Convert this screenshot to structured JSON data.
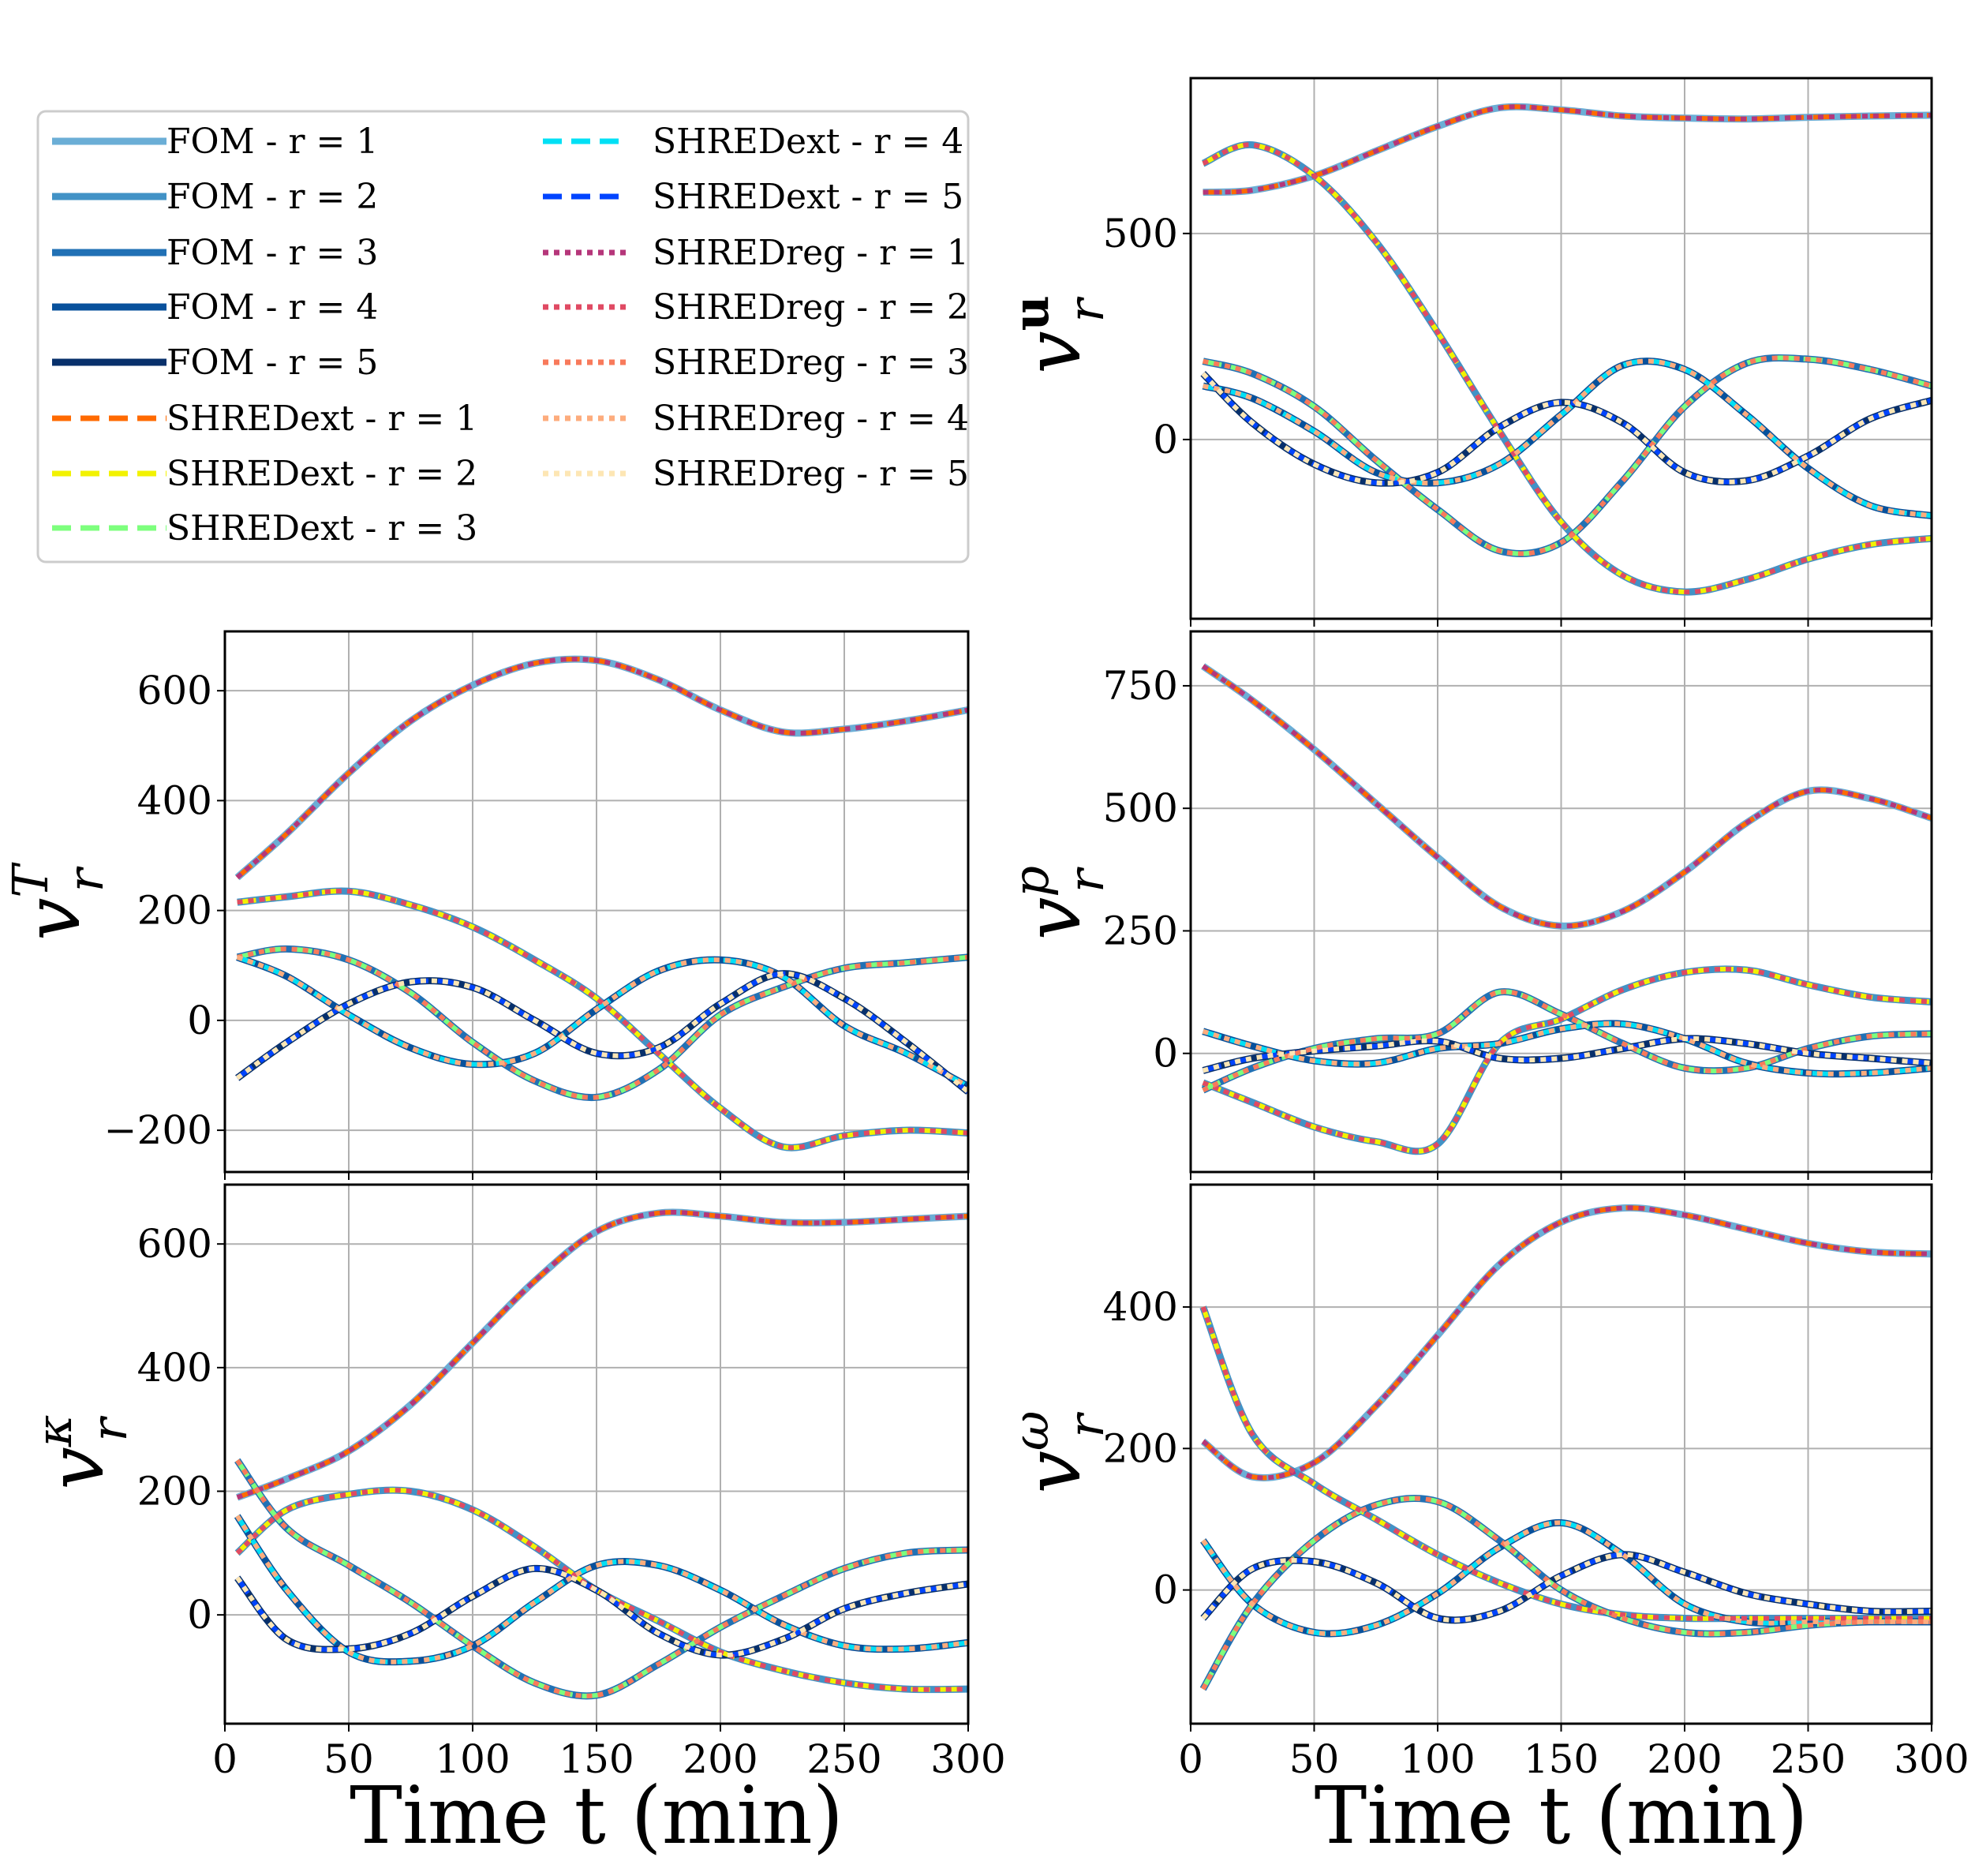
{
  "chart_data": {
    "type": "line",
    "grid": true,
    "legend": {
      "placement": "top-left",
      "entries": [
        {
          "label": "FOM - r = 1",
          "style": "solid",
          "color": "#6baed6"
        },
        {
          "label": "FOM - r = 2",
          "style": "solid",
          "color": "#4292c6"
        },
        {
          "label": "FOM - r = 3",
          "style": "solid",
          "color": "#2171b5"
        },
        {
          "label": "FOM - r = 4",
          "style": "solid",
          "color": "#08519c"
        },
        {
          "label": "FOM - r = 5",
          "style": "solid",
          "color": "#08306b"
        },
        {
          "label": "SHREDext - r = 1",
          "style": "dashed",
          "color": "#ff6a00"
        },
        {
          "label": "SHREDext - r = 2",
          "style": "dashed",
          "color": "#f2f200"
        },
        {
          "label": "SHREDext - r = 3",
          "style": "dashed",
          "color": "#7dff7d"
        },
        {
          "label": "SHREDext - r = 4",
          "style": "dashed",
          "color": "#00e0f5"
        },
        {
          "label": "SHREDext - r = 5",
          "style": "dashed",
          "color": "#0044ff"
        },
        {
          "label": "SHREDreg - r = 1",
          "style": "dotted",
          "color": "#b5367a"
        },
        {
          "label": "SHREDreg - r = 2",
          "style": "dotted",
          "color": "#e04a63"
        },
        {
          "label": "SHREDreg - r = 3",
          "style": "dotted",
          "color": "#f87a5b"
        },
        {
          "label": "SHREDreg - r = 4",
          "style": "dotted",
          "color": "#fdac7d"
        },
        {
          "label": "SHREDreg - r = 5",
          "style": "dotted",
          "color": "#fde6b4"
        }
      ]
    },
    "xlabel": "Time t (min)",
    "xlim": [
      0,
      300
    ],
    "xticks": [
      0,
      50,
      100,
      150,
      200,
      250,
      300
    ],
    "x": [
      5,
      25,
      50,
      75,
      100,
      125,
      150,
      175,
      200,
      225,
      250,
      275,
      300
    ],
    "panels": [
      {
        "id": "u",
        "ylabel": {
          "base": "v",
          "sub": "r",
          "sup": "u"
        },
        "ylim": [
          -435,
          877
        ],
        "yticks": [
          0,
          500
        ],
        "xticklabels": false,
        "modes": [
          [
            600,
            605,
            640,
            700,
            760,
            805,
            800,
            785,
            780,
            778,
            782,
            785,
            787
          ],
          [
            670,
            715,
            640,
            480,
            260,
            20,
            -200,
            -330,
            -370,
            -340,
            -290,
            -255,
            -240
          ],
          [
            190,
            160,
            80,
            -50,
            -170,
            -270,
            -250,
            -100,
            80,
            185,
            195,
            170,
            130
          ],
          [
            130,
            100,
            20,
            -80,
            -105,
            -60,
            60,
            180,
            170,
            60,
            -70,
            -160,
            -185
          ],
          [
            160,
            40,
            -60,
            -105,
            -80,
            30,
            90,
            40,
            -80,
            -100,
            -40,
            50,
            95
          ]
        ]
      },
      {
        "id": "T",
        "ylabel": {
          "base": "v",
          "sub": "r",
          "sup": "T"
        },
        "ylim": [
          -276,
          708
        ],
        "yticks": [
          -200,
          0,
          200,
          400,
          600
        ],
        "xticklabels": false,
        "modes": [
          [
            260,
            340,
            450,
            545,
            610,
            650,
            655,
            620,
            565,
            525,
            530,
            545,
            565
          ],
          [
            215,
            225,
            235,
            210,
            170,
            110,
            40,
            -60,
            -160,
            -230,
            -210,
            -200,
            -205
          ],
          [
            115,
            130,
            110,
            50,
            -40,
            -110,
            -140,
            -90,
            10,
            60,
            95,
            105,
            115
          ],
          [
            115,
            80,
            10,
            -50,
            -80,
            -60,
            20,
            90,
            110,
            80,
            -10,
            -60,
            -120
          ],
          [
            -105,
            -40,
            30,
            70,
            60,
            0,
            -60,
            -50,
            30,
            85,
            40,
            -40,
            -130
          ]
        ]
      },
      {
        "id": "p",
        "ylabel": {
          "base": "v",
          "sub": "r",
          "sup": "p"
        },
        "ylim": [
          -242,
          861
        ],
        "yticks": [
          0,
          250,
          500,
          750
        ],
        "xticklabels": false,
        "modes": [
          [
            790,
            720,
            620,
            510,
            400,
            300,
            260,
            290,
            370,
            470,
            535,
            520,
            480
          ],
          [
            -60,
            -100,
            -150,
            -180,
            -185,
            20,
            70,
            130,
            165,
            170,
            140,
            115,
            105
          ],
          [
            -75,
            -30,
            10,
            30,
            40,
            125,
            80,
            20,
            -30,
            -30,
            10,
            35,
            40
          ],
          [
            45,
            15,
            -15,
            -20,
            10,
            20,
            50,
            60,
            30,
            -20,
            -40,
            -40,
            -30
          ],
          [
            -35,
            -10,
            5,
            15,
            25,
            -10,
            -10,
            10,
            30,
            20,
            0,
            -10,
            -20
          ]
        ]
      },
      {
        "id": "kappa",
        "ylabel": {
          "base": "v",
          "sub": "r",
          "sup": "κ"
        },
        "ylim": [
          -176,
          696
        ],
        "yticks": [
          0,
          200,
          400,
          600
        ],
        "xticklabels": true,
        "modes": [
          [
            190,
            220,
            265,
            340,
            440,
            540,
            620,
            650,
            645,
            635,
            635,
            640,
            645
          ],
          [
            100,
            170,
            195,
            200,
            170,
            110,
            40,
            -10,
            -60,
            -90,
            -110,
            -120,
            -120
          ],
          [
            250,
            140,
            80,
            20,
            -50,
            -110,
            -130,
            -80,
            -20,
            30,
            75,
            100,
            105
          ],
          [
            160,
            40,
            -60,
            -75,
            -50,
            20,
            80,
            80,
            40,
            -15,
            -50,
            -55,
            -45
          ],
          [
            60,
            -40,
            -55,
            -30,
            30,
            75,
            40,
            -30,
            -65,
            -40,
            10,
            35,
            50
          ]
        ]
      },
      {
        "id": "omega",
        "ylabel": {
          "base": "v",
          "sub": "r",
          "sup": "ω"
        },
        "ylim": [
          -189,
          573
        ],
        "yticks": [
          0,
          200,
          400
        ],
        "xticklabels": true,
        "modes": [
          [
            210,
            160,
            180,
            260,
            360,
            460,
            520,
            540,
            530,
            510,
            490,
            478,
            475
          ],
          [
            400,
            220,
            150,
            100,
            50,
            10,
            -20,
            -35,
            -40,
            -40,
            -40,
            -40,
            -40
          ],
          [
            -140,
            -20,
            70,
            120,
            125,
            70,
            0,
            -40,
            -60,
            -60,
            -50,
            -45,
            -45
          ],
          [
            70,
            -20,
            -60,
            -50,
            -5,
            60,
            95,
            50,
            -20,
            -45,
            -45,
            -45,
            -45
          ],
          [
            -40,
            30,
            40,
            10,
            -40,
            -30,
            20,
            50,
            25,
            -5,
            -20,
            -30,
            -30
          ]
        ]
      }
    ]
  }
}
